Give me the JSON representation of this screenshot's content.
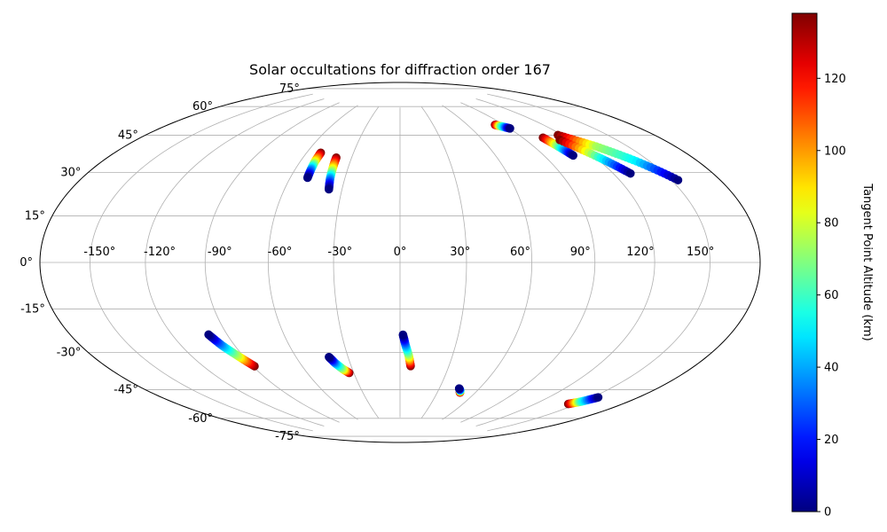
{
  "chart_data": {
    "type": "scatter",
    "projection": "hammer",
    "title": "Solar occultations for diffraction order 167",
    "grid": true,
    "x_ticks": [
      "-150°",
      "-120°",
      "-90°",
      "-60°",
      "-30°",
      "0°",
      "30°",
      "60°",
      "90°",
      "120°",
      "150°"
    ],
    "y_ticks": [
      "75°",
      "60°",
      "45°",
      "30°",
      "15°",
      "0°",
      "-15°",
      "-30°",
      "-45°",
      "-60°",
      "-75°"
    ],
    "colorbar": {
      "label": "Tangent Point Altitude (km)",
      "colormap": "jet",
      "range": [
        0,
        138
      ],
      "ticks": [
        "0",
        "20",
        "40",
        "60",
        "80",
        "100",
        "120"
      ]
    },
    "tracks": [
      {
        "lon": [
          -51,
          -51.2,
          -50.9,
          -50.5
        ],
        "lat": [
          50,
          46,
          42,
          38
        ],
        "alt": [
          138,
          90,
          40,
          0
        ]
      },
      {
        "lon": [
          -39.5,
          -38.8,
          -38,
          -36.8
        ],
        "lat": [
          48,
          43,
          38,
          33
        ],
        "alt": [
          138,
          90,
          40,
          0
        ]
      },
      {
        "lon": [
          90.5,
          86,
          83
        ],
        "lat": [
          60,
          61.5,
          62.5
        ],
        "alt": [
          0,
          70,
          138
        ]
      },
      {
        "lon": [
          104,
          106,
          108
        ],
        "lat": [
          54,
          49,
          45
        ],
        "alt": [
          138,
          60,
          0
        ]
      },
      {
        "lon": [
          117,
          130,
          142,
          154
        ],
        "lat": [
          54,
          47,
          39,
          30
        ],
        "alt": [
          138,
          75,
          50,
          0
        ]
      },
      {
        "lon": [
          113,
          122,
          130
        ],
        "lat": [
          52,
          43,
          35
        ],
        "alt": [
          138,
          60,
          0
        ]
      },
      {
        "lon": [
          -100,
          -97,
          -93,
          -89
        ],
        "lat": [
          -30,
          -35,
          -40,
          -45
        ],
        "alt": [
          0,
          40,
          80,
          138
        ]
      },
      {
        "lon": [
          -41,
          -39,
          -36,
          -33
        ],
        "lat": [
          -43,
          -46,
          -49,
          -51
        ],
        "alt": [
          0,
          40,
          80,
          138
        ]
      },
      {
        "lon": [
          1.5,
          3,
          5,
          6.5
        ],
        "lat": [
          -33,
          -38,
          -43,
          -48
        ],
        "alt": [
          0,
          40,
          80,
          138
        ]
      },
      {
        "lon": [
          45,
          47,
          48
        ],
        "lat": [
          -58.5,
          -59.5,
          -60.5
        ],
        "alt": [
          0,
          60,
          138
        ]
      },
      {
        "lon": [
          154,
          149,
          144
        ],
        "lat": [
          -53,
          -56,
          -58
        ],
        "alt": [
          0,
          60,
          138
        ]
      }
    ]
  }
}
